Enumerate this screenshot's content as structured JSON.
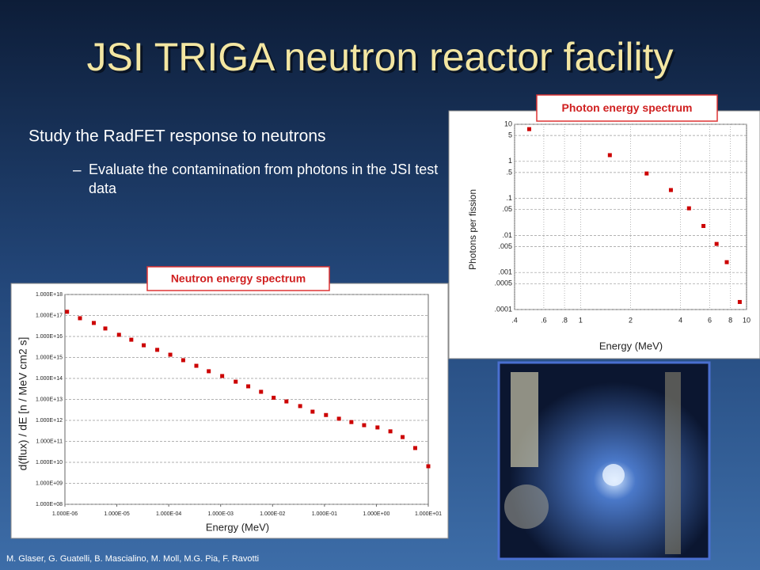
{
  "title": "JSI TRIGA neutron reactor facility",
  "bullets": [
    "Study the RadFET response to neutrons",
    "Evaluate the contamination from photons in the JSI test data"
  ],
  "footer": "M. Glaser, G. Guatelli, B. Mascialino, M. Moll, M.G. Pia, F. Ravotti",
  "chart_data": [
    {
      "type": "scatter",
      "title": "Neutron energy spectrum",
      "x_label": "Energy (MeV)",
      "y_label": "d(flux) / dE [n / MeV cm2 s]",
      "x_log": true,
      "y_log": true,
      "grid": "y",
      "color": "#cc0000",
      "xlim": [
        1e-06,
        10
      ],
      "ylim": [
        100000000,
        1000000000000000000
      ],
      "xticks": [
        {
          "value": 1e-06,
          "label": "1.000E-06"
        },
        {
          "value": 1e-05,
          "label": "1.000E-05"
        },
        {
          "value": 0.0001,
          "label": "1.000E-04"
        },
        {
          "value": 0.001,
          "label": "1.000E-03"
        },
        {
          "value": 0.01,
          "label": "1.000E-02"
        },
        {
          "value": 0.1,
          "label": "1.000E-01"
        },
        {
          "value": 1,
          "label": "1.000E+00"
        },
        {
          "value": 10,
          "label": "1.000E+01"
        }
      ],
      "yticks": [
        {
          "value": 100000000,
          "label": "1.000E+08"
        },
        {
          "value": 1000000000,
          "label": "1.000E+09"
        },
        {
          "value": 10000000000,
          "label": "1.000E+10"
        },
        {
          "value": 100000000000,
          "label": "1.000E+11"
        },
        {
          "value": 1000000000000,
          "label": "1.000E+12"
        },
        {
          "value": 10000000000000,
          "label": "1.000E+13"
        },
        {
          "value": 100000000000000,
          "label": "1.000E+14"
        },
        {
          "value": 1000000000000000,
          "label": "1.000E+15"
        },
        {
          "value": 10000000000000000,
          "label": "1.000E+16"
        },
        {
          "value": 100000000000000000,
          "label": "1.000E+17"
        },
        {
          "value": 1000000000000000000,
          "label": "1.000E+18"
        }
      ],
      "x": [
        1.1e-06,
        1.95e-06,
        3.6e-06,
        6e-06,
        1.1e-05,
        1.9e-05,
        3.3e-05,
        6e-05,
        0.000107,
        0.00019,
        0.00034,
        0.00059,
        0.00107,
        0.00195,
        0.0034,
        0.006,
        0.0105,
        0.0185,
        0.034,
        0.059,
        0.107,
        0.19,
        0.33,
        0.58,
        1.05,
        1.86,
        3.2,
        5.6,
        10
      ],
      "values": [
        150000000000000000,
        74000000000000000,
        44000000000000000,
        24000000000000000,
        12000000000000000,
        7000000000000000,
        3800000000000000,
        2300000000000000,
        1350000000000000,
        740000000000000,
        400000000000000,
        220000000000000,
        130000000000000,
        70000000000000,
        42000000000000,
        23000000000000,
        12000000000000,
        8000000000000,
        4800000000000,
        2600000000000,
        1800000000000,
        1200000000000,
        830000000000,
        590000000000,
        460000000000,
        300000000000,
        160000000000,
        48000000000,
        6500000000
      ]
    },
    {
      "type": "scatter",
      "title": "Photon energy spectrum",
      "x_label": "Energy (MeV)",
      "y_label": "Photons per fission",
      "x_log": true,
      "y_log": true,
      "grid": "both",
      "color": "#cc0000",
      "xlim": [
        0.4,
        10
      ],
      "ylim": [
        0.0001,
        10
      ],
      "xticks": [
        {
          "value": 0.4,
          "label": ".4"
        },
        {
          "value": 0.6,
          "label": ".6"
        },
        {
          "value": 0.8,
          "label": ".8"
        },
        1,
        2,
        4,
        6,
        8,
        10
      ],
      "yticks": [
        10,
        5,
        1,
        {
          "value": 0.5,
          "label": ".5"
        },
        {
          "value": 0.1,
          "label": ".1"
        },
        {
          "value": 0.05,
          "label": ".05"
        },
        {
          "value": 0.01,
          "label": ".01"
        },
        {
          "value": 0.005,
          "label": ".005"
        },
        {
          "value": 0.001,
          "label": ".001"
        },
        {
          "value": 0.0005,
          "label": ".0005"
        },
        {
          "value": 0.0001,
          "label": ".0001"
        }
      ],
      "x": [
        0.49,
        1.5,
        2.5,
        3.5,
        4.5,
        5.5,
        6.6,
        7.6,
        9.1
      ],
      "values": [
        7.4,
        1.47,
        0.47,
        0.168,
        0.054,
        0.018,
        0.0059,
        0.0019,
        0.00016
      ]
    }
  ]
}
